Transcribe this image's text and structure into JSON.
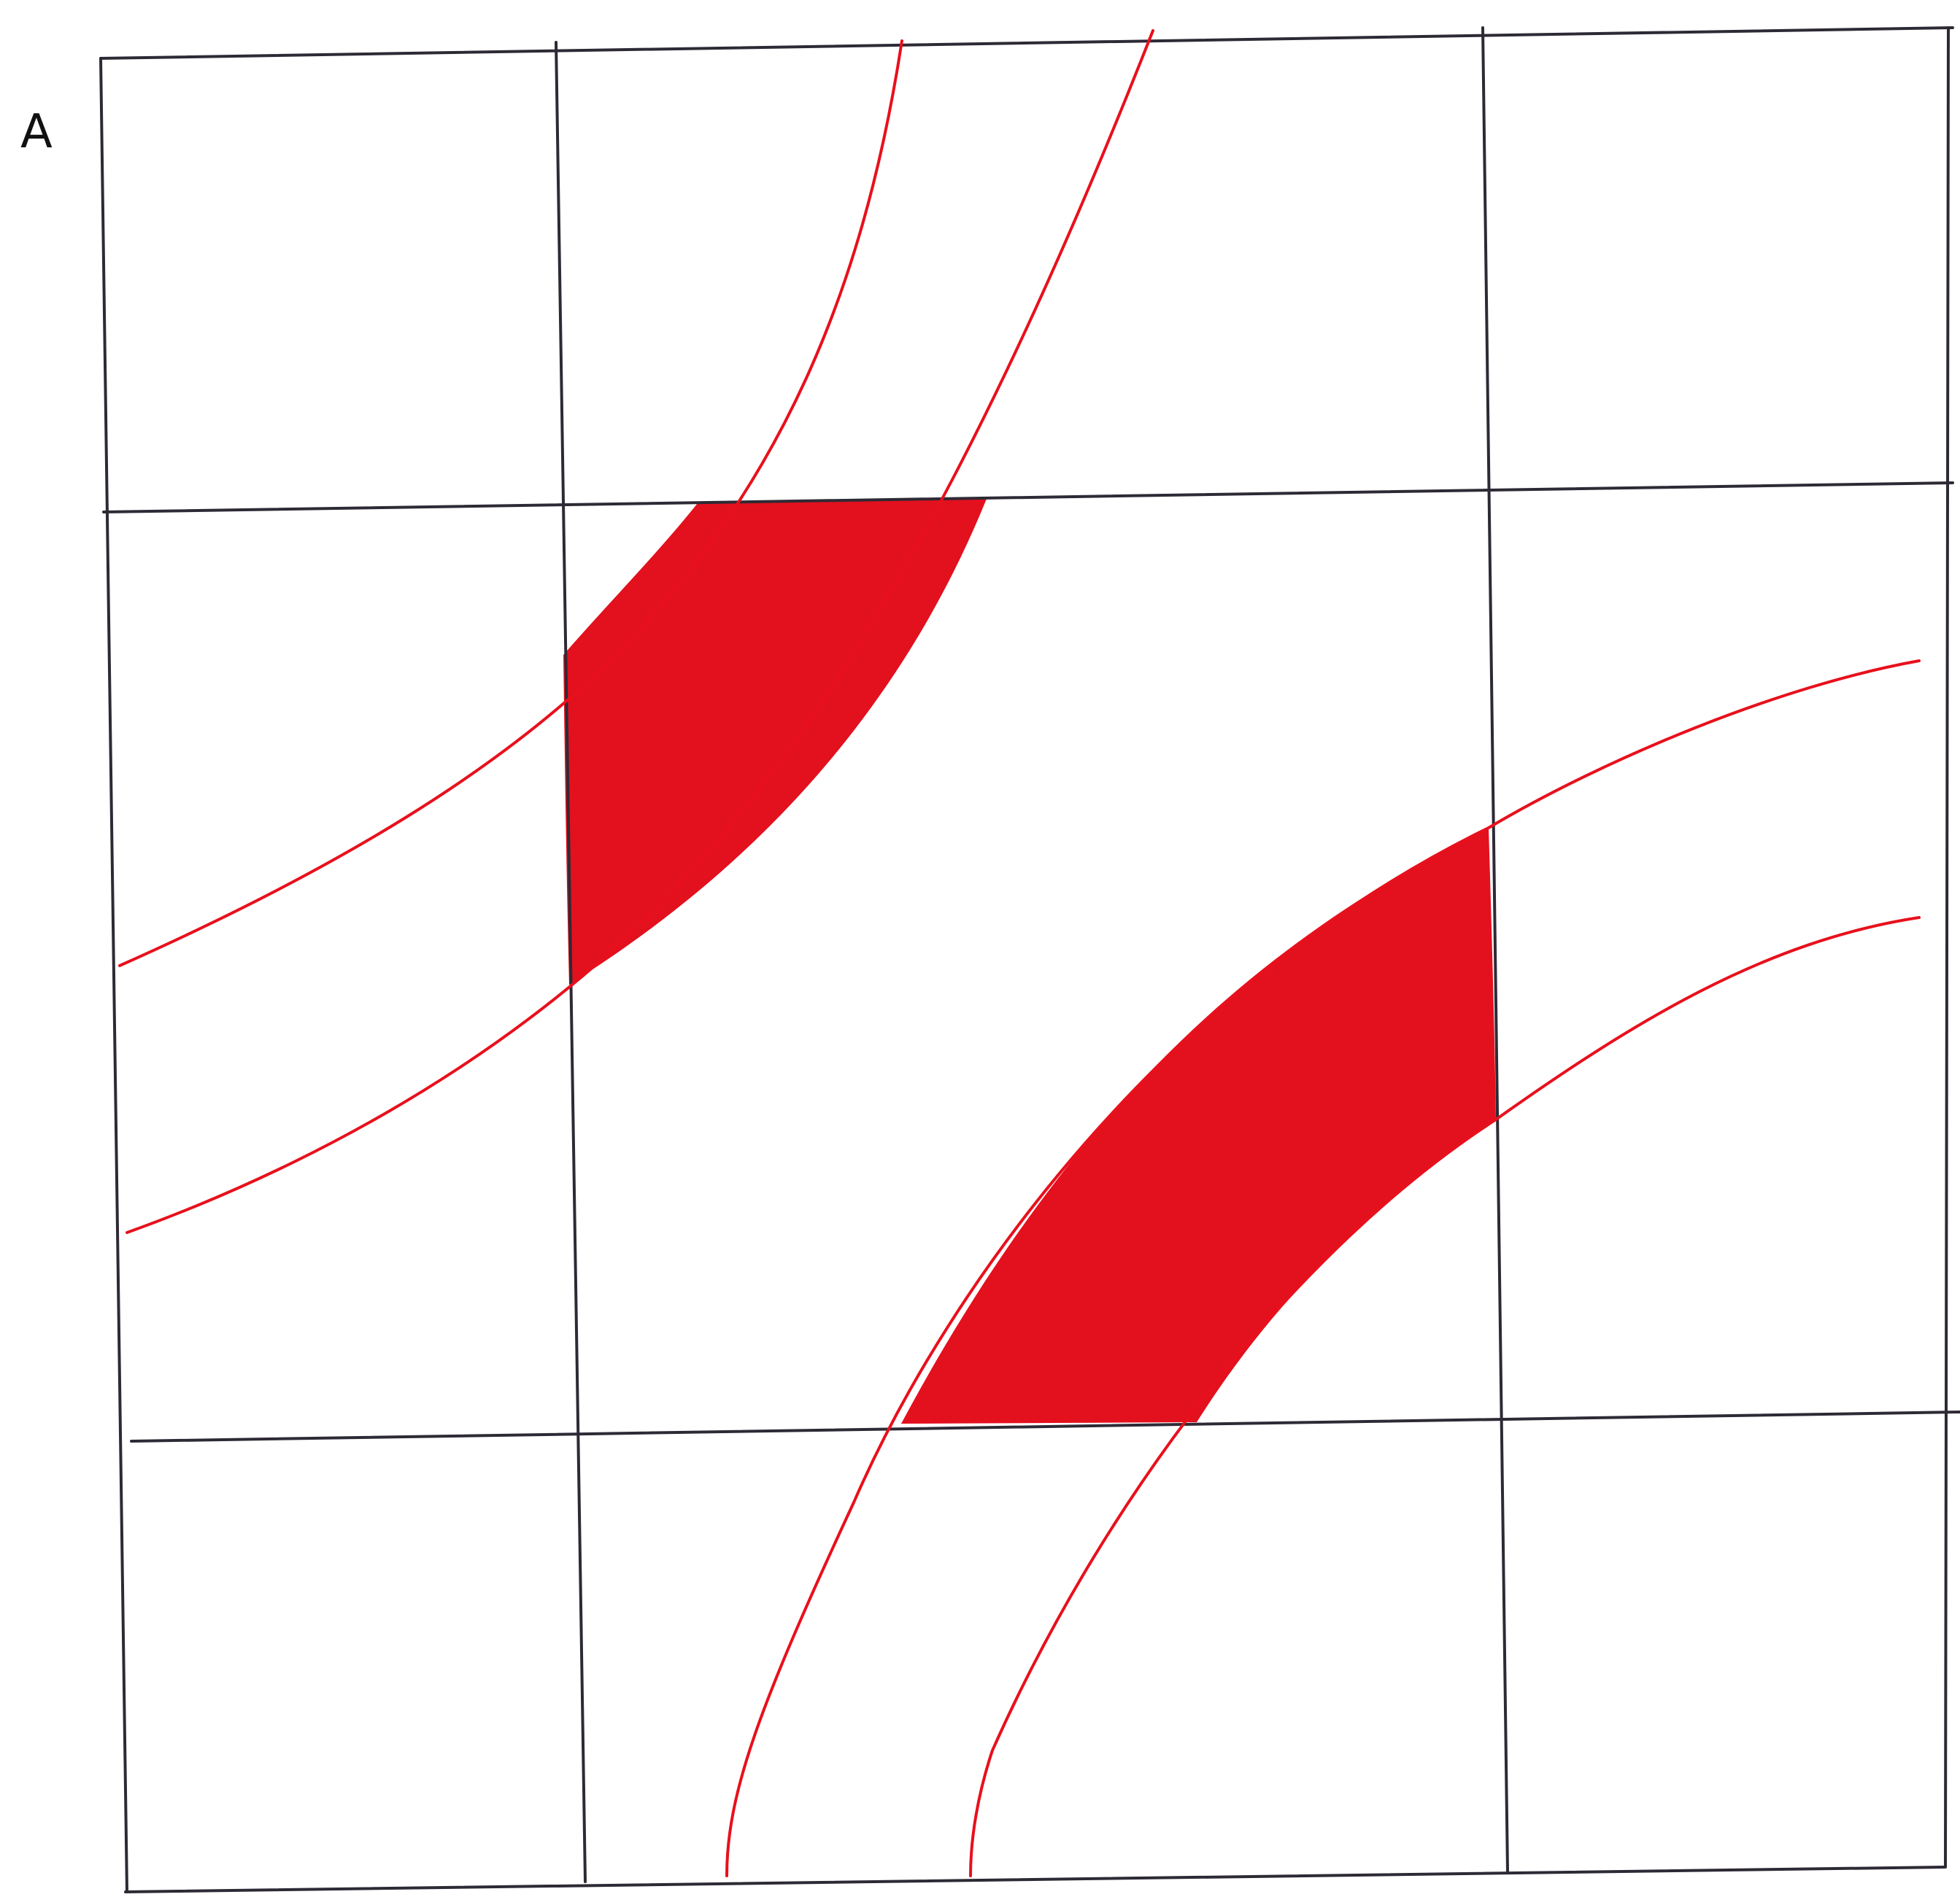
{
  "diagram": {
    "panel_label": "A",
    "colors": {
      "background": "#ffffff",
      "grid_line": "#2e2a35",
      "curve": "#e8101c",
      "fill": "#e3101e",
      "label": "#111111"
    },
    "grid": {
      "rows": 3,
      "columns": 3
    }
  }
}
